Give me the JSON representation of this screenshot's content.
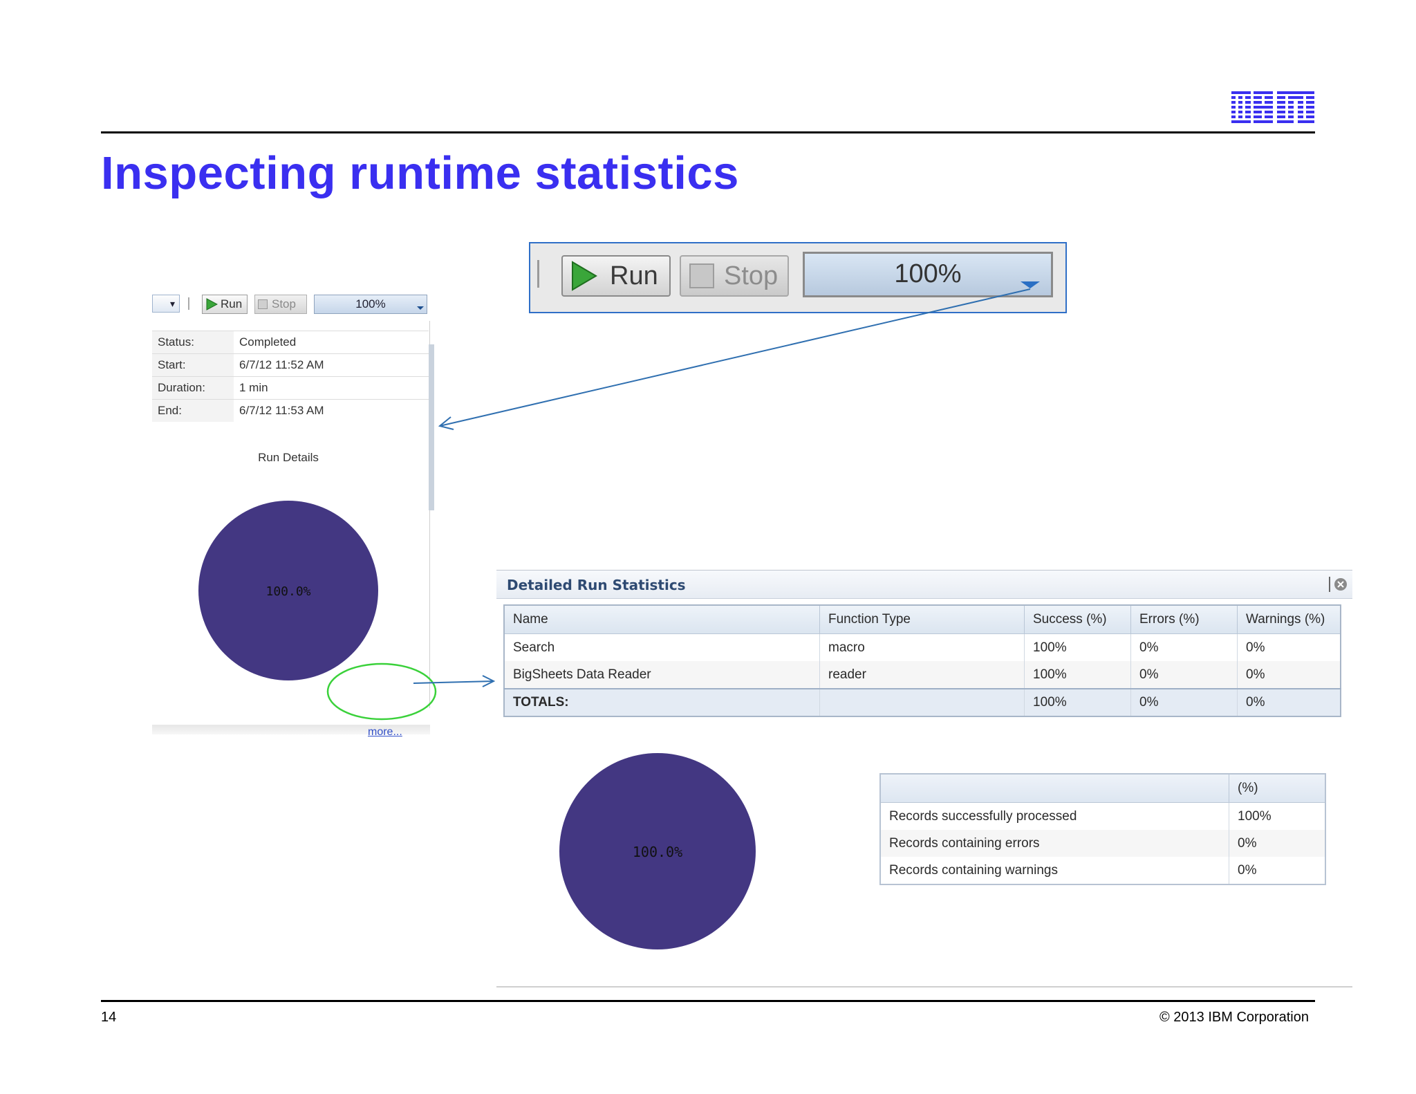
{
  "slide": {
    "title": "Inspecting runtime statistics",
    "logo_text": "IBM",
    "page_number": "14",
    "copyright": "© 2013 IBM Corporation"
  },
  "zoomed_toolbar": {
    "run_label": "Run",
    "stop_label": "Stop",
    "progress_label": "100%"
  },
  "small_panel": {
    "dropdown_label": "▾",
    "run_label": "Run",
    "stop_label": "Stop",
    "progress_label": "100%",
    "rows": [
      {
        "key": "Status:",
        "value": "Completed"
      },
      {
        "key": "Start:",
        "value": "6/7/12 11:52 AM"
      },
      {
        "key": "Duration:",
        "value": "1 min"
      },
      {
        "key": "End:",
        "value": "6/7/12 11:53 AM"
      }
    ],
    "run_details_label": "Run Details",
    "pie_label": "100.0%",
    "more_link": "more..."
  },
  "detailed": {
    "title": "Detailed Run Statistics",
    "columns": [
      "Name",
      "Function Type",
      "Success (%)",
      "Errors (%)",
      "Warnings (%)"
    ],
    "rows": [
      [
        "Search",
        "macro",
        "100%",
        "0%",
        "0%"
      ],
      [
        "BigSheets Data Reader",
        "reader",
        "100%",
        "0%",
        "0%"
      ]
    ],
    "totals": [
      "TOTALS:",
      "",
      "100%",
      "0%",
      "0%"
    ],
    "pie_label": "100.0%",
    "records_header": "(%)",
    "records": [
      [
        "Records successfully processed",
        "100%"
      ],
      [
        "Records containing errors",
        "0%"
      ],
      [
        "Records containing warnings",
        "0%"
      ]
    ]
  },
  "colors": {
    "title": "#3a2ff0",
    "pie": "#433782",
    "ibm_logo": "#3a2ff0",
    "arrow": "#2f6fb0",
    "highlight_ellipse": "#3ad13a"
  }
}
